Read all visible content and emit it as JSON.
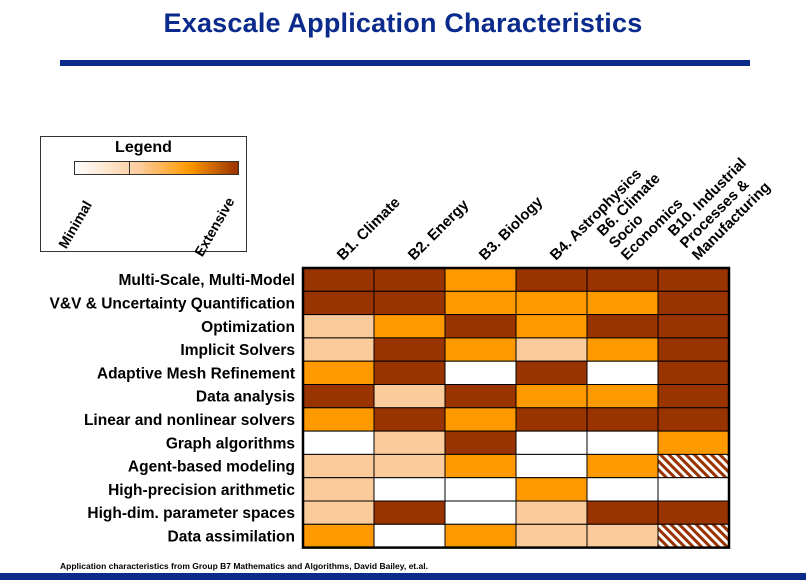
{
  "title": "Exascale Application Characteristics",
  "footer": "Application characteristics from Group B7 Mathematics and Algorithms, David Bailey, et.al.",
  "legend": {
    "title": "Legend",
    "min_label": "Minimal",
    "max_label": "Extensive"
  },
  "colors": {
    "title": "#0a2a8c",
    "level_0": "#ffffff",
    "level_1": "#fccb9b",
    "level_2": "#fe9900",
    "level_3": "#993300",
    "hatch": "#993300"
  },
  "chart_data": {
    "type": "heatmap",
    "scale": [
      "Minimal",
      "Extensive"
    ],
    "columns": [
      [
        "B1. Climate"
      ],
      [
        "B2. Energy"
      ],
      [
        "B3. Biology"
      ],
      [
        "B4. Astrophysics"
      ],
      [
        "B6. Climate",
        "Socio",
        "Economics"
      ],
      [
        "B10. Industrial",
        "Processes &",
        "Manufacturing"
      ]
    ],
    "rows": [
      "Multi-Scale, Multi-Model",
      "V&V & Uncertainty Quantification",
      "Optimization",
      "Implicit Solvers",
      "Adaptive Mesh Refinement",
      "Data analysis",
      "Linear and nonlinear solvers",
      "Graph algorithms",
      "Agent-based modeling",
      "High-precision arithmetic",
      "High-dim. parameter spaces",
      "Data assimilation"
    ],
    "levels": [
      [
        3,
        3,
        2,
        3,
        3,
        3
      ],
      [
        3,
        3,
        2,
        2,
        2,
        3
      ],
      [
        1,
        2,
        3,
        2,
        3,
        3
      ],
      [
        1,
        3,
        2,
        1,
        2,
        3
      ],
      [
        2,
        3,
        0,
        3,
        0,
        3
      ],
      [
        3,
        1,
        3,
        2,
        2,
        3
      ],
      [
        2,
        3,
        2,
        3,
        3,
        3
      ],
      [
        0,
        1,
        3,
        0,
        0,
        2
      ],
      [
        1,
        1,
        2,
        0,
        2,
        "hatch"
      ],
      [
        1,
        0,
        0,
        2,
        0,
        0
      ],
      [
        1,
        3,
        0,
        1,
        3,
        3
      ],
      [
        2,
        0,
        2,
        1,
        1,
        "hatch"
      ]
    ]
  }
}
